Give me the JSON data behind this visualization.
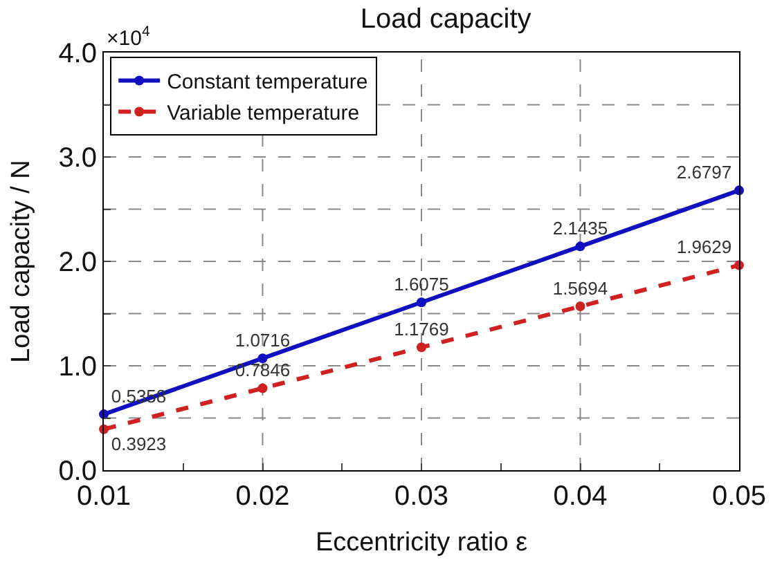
{
  "chart_data": {
    "type": "line",
    "title": "Load capacity",
    "xlabel": "Eccentricity ratio ε",
    "ylabel": "Load capacity / N",
    "annotations": [
      "×10$^{4}$"
    ],
    "x": [
      0.01,
      0.02,
      0.03,
      0.04,
      0.05
    ],
    "series": [
      {
        "name": "Constant temperature",
        "color": "#1010c0",
        "values": [
          0.5358,
          1.0716,
          1.6075,
          2.1435,
          2.6797
        ],
        "line_style": "solid"
      },
      {
        "name": "Variable temperature",
        "color": "#d02020",
        "values": [
          0.3923,
          0.7846,
          1.1769,
          1.5694,
          1.9629
        ],
        "line_style": "dashed"
      }
    ],
    "xlim": [
      0.01,
      0.05
    ],
    "xticks": [
      0.01,
      {
        "value": 0.015,
        "label": null
      },
      0.02,
      {
        "value": 0.025,
        "label": null
      },
      0.03,
      {
        "value": 0.035,
        "label": null
      },
      0.04,
      {
        "value": 0.045,
        "label": null
      },
      0.05
    ],
    "ylim": [
      0,
      4
    ],
    "yticks": [
      {
        "value": 0,
        "label": "0.0"
      },
      {
        "value": 0.5,
        "label": null
      },
      {
        "value": 1,
        "label": "1.0"
      },
      {
        "value": 1.5,
        "label": null
      },
      {
        "value": 2,
        "label": "2.0"
      },
      {
        "value": 2.5,
        "label": null
      },
      {
        "value": 3,
        "label": "3.0"
      },
      {
        "value": 3.5,
        "label": null
      },
      {
        "value": 4,
        "label": "4.0"
      }
    ],
    "grid": true,
    "legend": "top left",
    "marker": "circle",
    "data_labels": true
  }
}
